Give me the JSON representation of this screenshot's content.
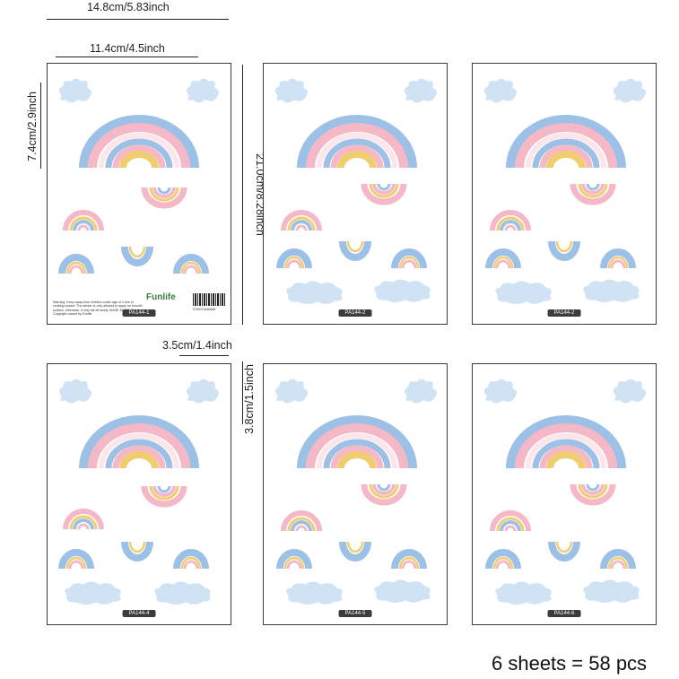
{
  "dimensions": {
    "total_width": "14.8cm/5.83inch",
    "sticker_width": "11.4cm/4.5inch",
    "sticker_height": "7.4cm/2.9inch",
    "sheet_height": "21.0cm/8.28inch",
    "small_width": "3.5cm/1.4inch",
    "small_height": "3.8cm/1.5inch"
  },
  "sheets": [
    {
      "label": "PA144-1"
    },
    {
      "label": "PA144-2"
    },
    {
      "label": "PA144-2"
    },
    {
      "label": "PA144-4"
    },
    {
      "label": "PA144-5"
    },
    {
      "label": "PA144-6"
    }
  ],
  "sheet1_extras": {
    "fine_print": "Warning: Keep away from children under age of 3 due to choking hazard. The sticker is only allowed to apply on smooth surface, otherwise, it may fall off easily. MADE IN CHINA. Copyright owned by Funlife",
    "brand": "Funlife",
    "barcode_number": "0700713440446"
  },
  "caption": "6 sheets = 58 pcs",
  "colors": {
    "pink": "#f4b8c6",
    "blue": "#9dc1e6",
    "yellow": "#f0cd6e",
    "cloud": "#cfe3f5"
  }
}
